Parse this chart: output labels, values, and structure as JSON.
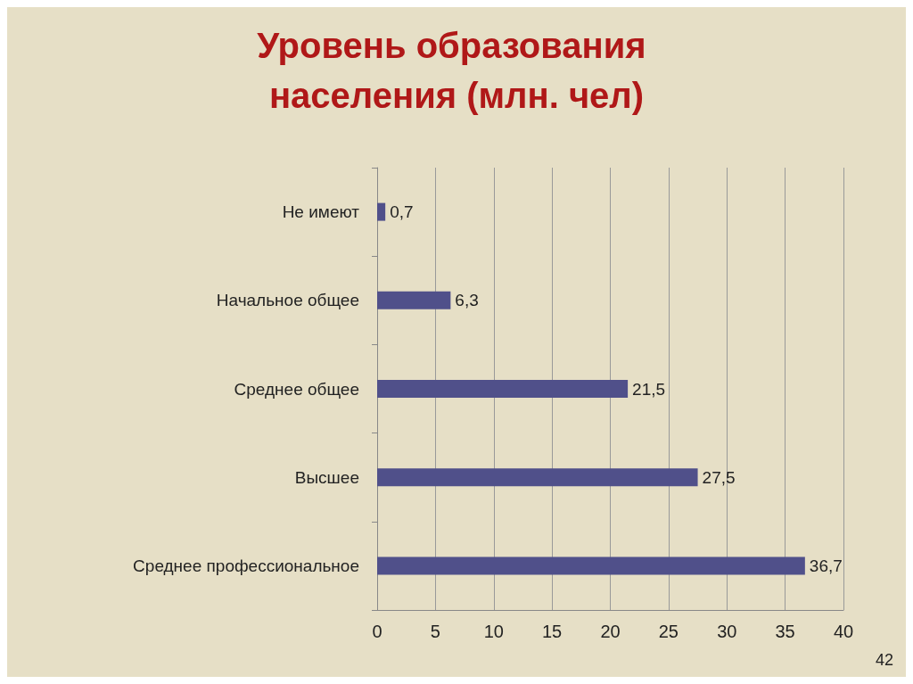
{
  "chart_data": {
    "type": "bar",
    "orientation": "horizontal",
    "title": "Уровень образования населения (млн. чел)",
    "categories": [
      "Не имеют",
      "Начальное общее",
      "Среднее общее",
      "Высшее",
      "Среднее профессиональное"
    ],
    "values": [
      0.7,
      6.3,
      21.5,
      27.5,
      36.7
    ],
    "value_labels": [
      "0,7",
      "6,3",
      "21,5",
      "27,5",
      "36,7"
    ],
    "color": "#50508a",
    "xlim": [
      0,
      40
    ],
    "xticks": [
      0,
      5,
      10,
      15,
      20,
      25,
      30,
      35,
      40
    ],
    "grid": "x",
    "annotations": [
      "42"
    ]
  }
}
